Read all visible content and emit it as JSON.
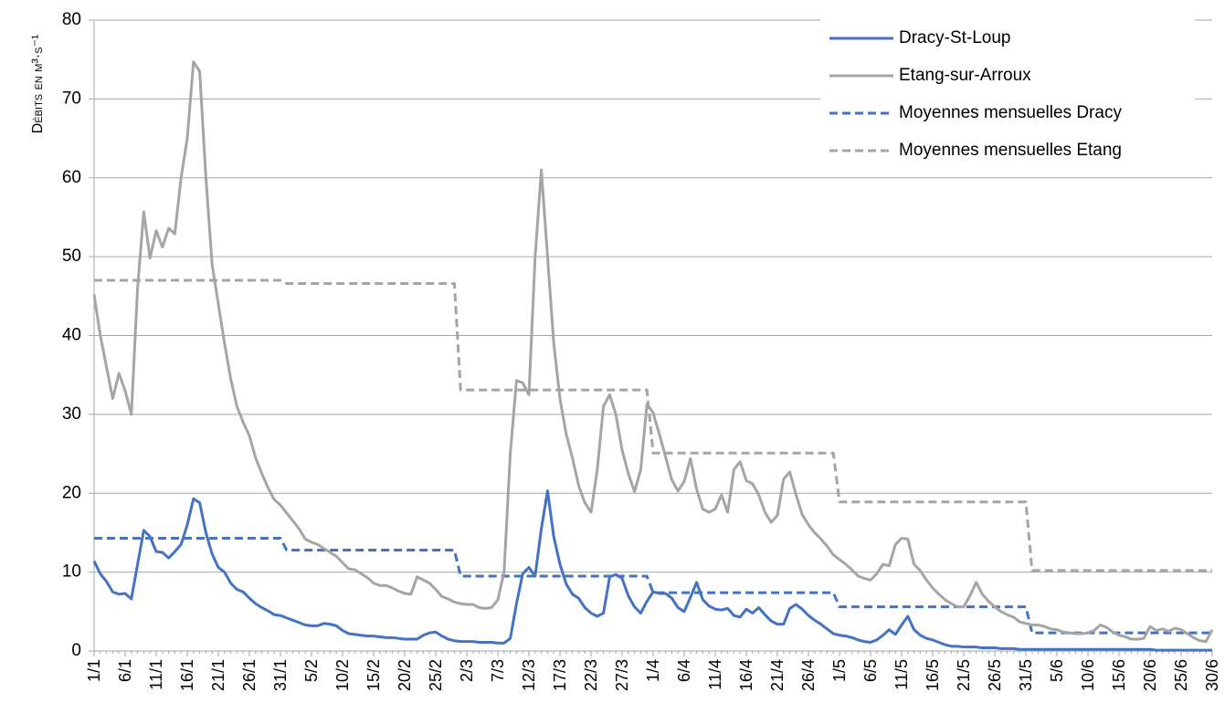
{
  "chart_data": {
    "type": "line",
    "y_label": "Débits en m³·s⁻¹",
    "categories": [
      "1/1",
      null,
      null,
      null,
      null,
      "6/1",
      null,
      null,
      null,
      null,
      "11/1",
      null,
      null,
      null,
      null,
      "16/1",
      null,
      null,
      null,
      null,
      "21/1",
      null,
      null,
      null,
      null,
      "26/1",
      null,
      null,
      null,
      null,
      "31/1",
      null,
      null,
      null,
      null,
      "5/2",
      null,
      null,
      null,
      null,
      "10/2",
      null,
      null,
      null,
      null,
      "15/2",
      null,
      null,
      null,
      null,
      "20/2",
      null,
      null,
      null,
      null,
      "25/2",
      null,
      null,
      null,
      null,
      "2/3",
      null,
      null,
      null,
      null,
      "7/3",
      null,
      null,
      null,
      null,
      "12/3",
      null,
      null,
      null,
      null,
      "17/3",
      null,
      null,
      null,
      null,
      "22/3",
      null,
      null,
      null,
      null,
      "27/3",
      null,
      null,
      null,
      null,
      "1/4",
      null,
      null,
      null,
      null,
      "6/4",
      null,
      null,
      null,
      null,
      "11/4",
      null,
      null,
      null,
      null,
      "16/4",
      null,
      null,
      null,
      null,
      "21/4",
      null,
      null,
      null,
      null,
      "26/4",
      null,
      null,
      null,
      null,
      "1/5",
      null,
      null,
      null,
      null,
      "6/5",
      null,
      null,
      null,
      null,
      "11/5",
      null,
      null,
      null,
      null,
      "16/5",
      null,
      null,
      null,
      null,
      "21/5",
      null,
      null,
      null,
      null,
      "26/5",
      null,
      null,
      null,
      null,
      "31/5",
      null,
      null,
      null,
      null,
      "5/6",
      null,
      null,
      null,
      null,
      "10/6",
      null,
      null,
      null,
      null,
      "15/6",
      null,
      null,
      null,
      null,
      "20/6",
      null,
      null,
      null,
      null,
      "25/6",
      null,
      null,
      null,
      null,
      "30/6"
    ],
    "series": [
      {
        "name": "Dracy-St-Loup",
        "color": "#4472c4",
        "dashed": false,
        "values": [
          11.4,
          9.8,
          8.8,
          7.5,
          7.2,
          7.3,
          6.6,
          11,
          15.3,
          14.5,
          12.6,
          12.5,
          11.8,
          12.6,
          13.5,
          16,
          19.3,
          18.8,
          15,
          12.3,
          10.6,
          10,
          8.6,
          7.8,
          7.5,
          6.7,
          6,
          5.5,
          5.1,
          4.6,
          4.5,
          4.2,
          3.9,
          3.6,
          3.3,
          3.2,
          3.2,
          3.5,
          3.4,
          3.2,
          2.6,
          2.2,
          2.1,
          2.0,
          1.9,
          1.9,
          1.8,
          1.7,
          1.7,
          1.6,
          1.5,
          1.5,
          1.5,
          2.0,
          2.3,
          2.4,
          1.9,
          1.5,
          1.3,
          1.2,
          1.2,
          1.2,
          1.1,
          1.1,
          1.1,
          1.0,
          1.0,
          1.6,
          6,
          9.8,
          10.6,
          9.5,
          15.5,
          20.3,
          14.5,
          11,
          8.5,
          7.2,
          6.7,
          5.5,
          4.8,
          4.4,
          4.8,
          9.4,
          9.7,
          9.2,
          7,
          5.6,
          4.8,
          6.3,
          7.5,
          7.3,
          7.3,
          6.7,
          5.5,
          5,
          6.8,
          8.7,
          6.5,
          5.7,
          5.3,
          5.2,
          5.4,
          4.5,
          4.3,
          5.3,
          4.8,
          5.5,
          4.6,
          3.8,
          3.4,
          3.4,
          5.4,
          5.9,
          5.3,
          4.5,
          3.9,
          3.4,
          2.8,
          2.2,
          2.0,
          1.9,
          1.7,
          1.4,
          1.2,
          1.1,
          1.4,
          2.0,
          2.7,
          2.1,
          3.3,
          4.4,
          2.7,
          2.0,
          1.6,
          1.4,
          1.1,
          0.8,
          0.6,
          0.6,
          0.5,
          0.5,
          0.5,
          0.4,
          0.4,
          0.4,
          0.3,
          0.3,
          0.3,
          0.2,
          0.2,
          0.2,
          0.2,
          0.2,
          0.2,
          0.2,
          0.2,
          0.2,
          0.2,
          0.2,
          0.2,
          0.2,
          0.2,
          0.2,
          0.2,
          0.2,
          0.2,
          0.2,
          0.2,
          0.2,
          0.2,
          0.1,
          0.1,
          0.1,
          0.1,
          0.1,
          0.1,
          0.1,
          0.1,
          0.1,
          0.1
        ]
      },
      {
        "name": "Etang-sur-Arroux",
        "color": "#a5a5a5",
        "dashed": false,
        "values": [
          45.2,
          40,
          36,
          32,
          35.2,
          33,
          30,
          46,
          55.7,
          49.8,
          53.3,
          51.2,
          53.6,
          52.9,
          60,
          65,
          74.7,
          73.5,
          60,
          49,
          44,
          39,
          34.5,
          31,
          29,
          27.3,
          24.5,
          22.5,
          20.7,
          19.2,
          18.5,
          17.5,
          16.5,
          15.5,
          14.2,
          13.8,
          13.5,
          13,
          12.5,
          12,
          11.2,
          10.4,
          10.3,
          9.8,
          9.3,
          8.6,
          8.3,
          8.3,
          8.0,
          7.6,
          7.3,
          7.2,
          9.4,
          9.0,
          8.6,
          7.8,
          6.9,
          6.6,
          6.2,
          6.0,
          5.9,
          5.9,
          5.5,
          5.4,
          5.5,
          6.5,
          10,
          25,
          34.3,
          34,
          32.5,
          50,
          61,
          50,
          39,
          32,
          27.5,
          24.5,
          21,
          18.8,
          17.6,
          23,
          31,
          32.5,
          30,
          25.5,
          22.5,
          20.2,
          23,
          31.3,
          30.2,
          27.5,
          24.6,
          21.7,
          20.3,
          21.5,
          24.4,
          20.5,
          18,
          17.6,
          18,
          19.8,
          17.6,
          23,
          24,
          21.6,
          21.2,
          19.8,
          17.6,
          16.3,
          17.2,
          21.8,
          22.7,
          19.8,
          17.3,
          16,
          15,
          14.2,
          13.3,
          12.2,
          11.6,
          11,
          10.3,
          9.5,
          9.2,
          9,
          9.8,
          11,
          10.8,
          13.5,
          14.3,
          14.2,
          11,
          10.2,
          9,
          8,
          7.2,
          6.5,
          6,
          5.6,
          5.6,
          7,
          8.7,
          7.2,
          6.3,
          5.6,
          5,
          4.6,
          4.3,
          3.7,
          3.5,
          3.3,
          3.3,
          3.1,
          2.8,
          2.7,
          2.4,
          2.3,
          2.2,
          2.2,
          2.3,
          2.6,
          3.3,
          3.0,
          2.4,
          2.0,
          1.8,
          1.5,
          1.5,
          1.6,
          3.1,
          2.6,
          2.8,
          2.5,
          2.9,
          2.7,
          2.2,
          1.7,
          1.3,
          1.2,
          2.7
        ]
      },
      {
        "name": "Moyennes mensuelles Dracy",
        "color": "#4472c4",
        "dashed": true,
        "values": [
          14.3,
          14.3,
          14.3,
          14.3,
          14.3,
          14.3,
          14.3,
          14.3,
          14.3,
          14.3,
          14.3,
          14.3,
          14.3,
          14.3,
          14.3,
          14.3,
          14.3,
          14.3,
          14.3,
          14.3,
          14.3,
          14.3,
          14.3,
          14.3,
          14.3,
          14.3,
          14.3,
          14.3,
          14.3,
          14.3,
          14.3,
          12.8,
          12.8,
          12.8,
          12.8,
          12.8,
          12.8,
          12.8,
          12.8,
          12.8,
          12.8,
          12.8,
          12.8,
          12.8,
          12.8,
          12.8,
          12.8,
          12.8,
          12.8,
          12.8,
          12.8,
          12.8,
          12.8,
          12.8,
          12.8,
          12.8,
          12.8,
          12.8,
          12.8,
          9.5,
          9.5,
          9.5,
          9.5,
          9.5,
          9.5,
          9.5,
          9.5,
          9.5,
          9.5,
          9.5,
          9.5,
          9.5,
          9.5,
          9.5,
          9.5,
          9.5,
          9.5,
          9.5,
          9.5,
          9.5,
          9.5,
          9.5,
          9.5,
          9.5,
          9.5,
          9.5,
          9.5,
          9.5,
          9.5,
          9.5,
          7.4,
          7.4,
          7.4,
          7.4,
          7.4,
          7.4,
          7.4,
          7.4,
          7.4,
          7.4,
          7.4,
          7.4,
          7.4,
          7.4,
          7.4,
          7.4,
          7.4,
          7.4,
          7.4,
          7.4,
          7.4,
          7.4,
          7.4,
          7.4,
          7.4,
          7.4,
          7.4,
          7.4,
          7.4,
          7.4,
          5.6,
          5.6,
          5.6,
          5.6,
          5.6,
          5.6,
          5.6,
          5.6,
          5.6,
          5.6,
          5.6,
          5.6,
          5.6,
          5.6,
          5.6,
          5.6,
          5.6,
          5.6,
          5.6,
          5.6,
          5.6,
          5.6,
          5.6,
          5.6,
          5.6,
          5.6,
          5.6,
          5.6,
          5.6,
          5.6,
          5.6,
          2.3,
          2.3,
          2.3,
          2.3,
          2.3,
          2.3,
          2.3,
          2.3,
          2.3,
          2.3,
          2.3,
          2.3,
          2.3,
          2.3,
          2.3,
          2.3,
          2.3,
          2.3,
          2.3,
          2.3,
          2.3,
          2.3,
          2.3,
          2.3,
          2.3,
          2.3,
          2.3,
          2.3,
          2.3,
          2.3
        ]
      },
      {
        "name": "Moyennes mensuelles Etang",
        "color": "#a5a5a5",
        "dashed": true,
        "values": [
          47,
          47,
          47,
          47,
          47,
          47,
          47,
          47,
          47,
          47,
          47,
          47,
          47,
          47,
          47,
          47,
          47,
          47,
          47,
          47,
          47,
          47,
          47,
          47,
          47,
          47,
          47,
          47,
          47,
          47,
          47,
          46.6,
          46.6,
          46.6,
          46.6,
          46.6,
          46.6,
          46.6,
          46.6,
          46.6,
          46.6,
          46.6,
          46.6,
          46.6,
          46.6,
          46.6,
          46.6,
          46.6,
          46.6,
          46.6,
          46.6,
          46.6,
          46.6,
          46.6,
          46.6,
          46.6,
          46.6,
          46.6,
          46.6,
          33.1,
          33.1,
          33.1,
          33.1,
          33.1,
          33.1,
          33.1,
          33.1,
          33.1,
          33.1,
          33.1,
          33.1,
          33.1,
          33.1,
          33.1,
          33.1,
          33.1,
          33.1,
          33.1,
          33.1,
          33.1,
          33.1,
          33.1,
          33.1,
          33.1,
          33.1,
          33.1,
          33.1,
          33.1,
          33.1,
          33.1,
          25.1,
          25.1,
          25.1,
          25.1,
          25.1,
          25.1,
          25.1,
          25.1,
          25.1,
          25.1,
          25.1,
          25.1,
          25.1,
          25.1,
          25.1,
          25.1,
          25.1,
          25.1,
          25.1,
          25.1,
          25.1,
          25.1,
          25.1,
          25.1,
          25.1,
          25.1,
          25.1,
          25.1,
          25.1,
          25.1,
          18.9,
          18.9,
          18.9,
          18.9,
          18.9,
          18.9,
          18.9,
          18.9,
          18.9,
          18.9,
          18.9,
          18.9,
          18.9,
          18.9,
          18.9,
          18.9,
          18.9,
          18.9,
          18.9,
          18.9,
          18.9,
          18.9,
          18.9,
          18.9,
          18.9,
          18.9,
          18.9,
          18.9,
          18.9,
          18.9,
          18.9,
          10.2,
          10.2,
          10.2,
          10.2,
          10.2,
          10.2,
          10.2,
          10.2,
          10.2,
          10.2,
          10.2,
          10.2,
          10.2,
          10.2,
          10.2,
          10.2,
          10.2,
          10.2,
          10.2,
          10.2,
          10.2,
          10.2,
          10.2,
          10.2,
          10.2,
          10.2,
          10.2,
          10.2,
          10.2,
          10.2
        ]
      }
    ],
    "ylim": [
      0,
      80
    ],
    "yticks": [
      0,
      10,
      20,
      30,
      40,
      50,
      60,
      70,
      80
    ],
    "grid": true,
    "legend": "top-right"
  }
}
